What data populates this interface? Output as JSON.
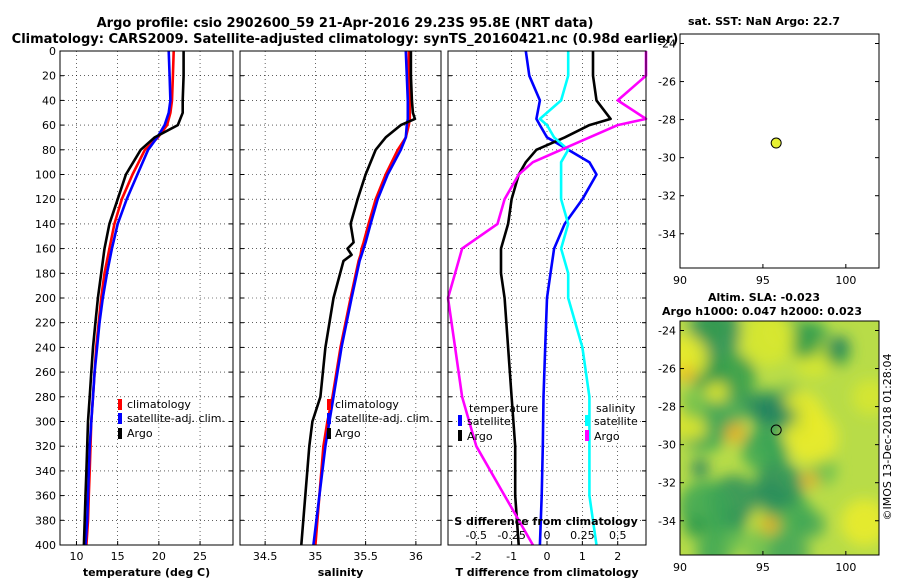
{
  "header": {
    "title1": "Argo profile: csio 2902600_59 21-Apr-2016 29.23S 95.8E (NRT data)",
    "title2": "Climatology: CARS2009. Satellite-adjusted climatology: synTS_20160421.nc (0.98d earlier)"
  },
  "side_label": "©IMOS 13-Dec-2018 01:28:04",
  "colors": {
    "red": "#ff0000",
    "blue": "#0000ff",
    "black": "#000000",
    "cyan": "#00ffff",
    "magenta": "#ff00ff",
    "marker": "#e6f032"
  },
  "chart_data": [
    {
      "id": "temperature",
      "type": "line",
      "xlabel": "temperature (deg C)",
      "xlim": [
        8,
        29
      ],
      "ylim": [
        400,
        0
      ],
      "xticks": [
        "10",
        "15",
        "20",
        "25"
      ],
      "xtick_values": [
        10,
        15,
        20,
        25
      ],
      "yticks": [
        "0",
        "20",
        "40",
        "60",
        "80",
        "100",
        "120",
        "140",
        "160",
        "180",
        "200",
        "220",
        "240",
        "260",
        "280",
        "300",
        "320",
        "340",
        "360",
        "380",
        "400"
      ],
      "depth": [
        0,
        20,
        40,
        50,
        60,
        70,
        80,
        100,
        120,
        140,
        160,
        180,
        200,
        220,
        240,
        260,
        280,
        300,
        320,
        340,
        360,
        380,
        400
      ],
      "legend": [
        "climatology",
        "satellite-adj. clim.",
        "Argo"
      ],
      "series": [
        {
          "name": "climatology",
          "color": "red",
          "values": [
            21.8,
            21.7,
            21.6,
            21.4,
            21.0,
            19.9,
            18.3,
            16.8,
            15.5,
            14.6,
            14.0,
            13.4,
            13.0,
            12.7,
            12.4,
            12.2,
            12.0,
            11.8,
            11.7,
            11.6,
            11.5,
            11.4,
            11.2
          ]
        },
        {
          "name": "satellite-adj. clim.",
          "color": "blue",
          "values": [
            21.2,
            21.3,
            21.4,
            21.2,
            20.7,
            19.8,
            18.7,
            17.4,
            16.1,
            15.0,
            14.3,
            13.7,
            13.2,
            12.8,
            12.5,
            12.2,
            12.0,
            11.8,
            11.6,
            11.5,
            11.4,
            11.3,
            11.1
          ]
        },
        {
          "name": "Argo",
          "color": "black",
          "values": [
            23.0,
            23.0,
            22.9,
            22.9,
            22.3,
            19.5,
            17.8,
            16.0,
            15.0,
            14.0,
            13.4,
            13.0,
            12.6,
            12.3,
            12.0,
            11.8,
            11.6,
            11.4,
            11.3,
            11.2,
            11.1,
            11.0,
            10.9
          ]
        }
      ]
    },
    {
      "id": "salinity",
      "type": "line",
      "xlabel": "salinity",
      "xlim": [
        34.25,
        36.25
      ],
      "ylim": [
        400,
        0
      ],
      "xticks": [
        "34.5",
        "35",
        "35.5",
        "36"
      ],
      "xtick_values": [
        34.5,
        35,
        35.5,
        36
      ],
      "depth": [
        0,
        20,
        40,
        50,
        55,
        60,
        70,
        80,
        100,
        120,
        140,
        155,
        160,
        165,
        170,
        200,
        240,
        280,
        300,
        320,
        360,
        400
      ],
      "legend": [
        "climatology",
        "satellite-adj. clim.",
        "Argo"
      ],
      "series": [
        {
          "name": "climatology",
          "color": "red",
          "values": [
            35.93,
            35.93,
            35.94,
            35.94,
            35.94,
            35.93,
            35.9,
            35.82,
            35.7,
            35.6,
            35.53,
            35.48,
            35.46,
            35.45,
            35.43,
            35.35,
            35.25,
            35.17,
            35.12,
            35.08,
            35.04,
            35.0
          ]
        },
        {
          "name": "satellite-adj. clim.",
          "color": "blue",
          "values": [
            35.9,
            35.91,
            35.92,
            35.92,
            35.92,
            35.91,
            35.9,
            35.85,
            35.72,
            35.62,
            35.55,
            35.5,
            35.48,
            35.46,
            35.44,
            35.36,
            35.26,
            35.18,
            35.14,
            35.1,
            35.04,
            34.98
          ]
        },
        {
          "name": "Argo",
          "color": "black",
          "values": [
            35.95,
            35.95,
            35.96,
            35.97,
            35.99,
            35.85,
            35.7,
            35.6,
            35.5,
            35.42,
            35.35,
            35.38,
            35.32,
            35.36,
            35.28,
            35.18,
            35.1,
            35.05,
            34.97,
            34.94,
            34.9,
            34.86
          ]
        }
      ]
    },
    {
      "id": "difference",
      "type": "line",
      "xlabel": "T difference from climatology",
      "xlabel_top": "S difference from climatology",
      "xlim": [
        -2.8,
        2.8
      ],
      "ylim": [
        400,
        0
      ],
      "xticks": [
        "-2",
        "-1",
        "0",
        "1",
        "2"
      ],
      "xtick_values": [
        -2,
        -1,
        0,
        1,
        2
      ],
      "xticks_top": [
        "-0.5",
        "-0.25",
        "0",
        "0.25",
        "0.5"
      ],
      "xtick_top_values": [
        -0.5,
        -0.25,
        0,
        0.25,
        0.5
      ],
      "depth": [
        0,
        20,
        40,
        55,
        60,
        70,
        80,
        90,
        100,
        120,
        140,
        160,
        180,
        200,
        240,
        280,
        320,
        360,
        400
      ],
      "legend_temperature_title": "temperature",
      "legend_salinity_title": "salinity",
      "legend": [
        "satellite",
        "Argo",
        "satellite",
        "Argo"
      ],
      "series": [
        {
          "name": "satellite",
          "group": "temperature",
          "color": "blue",
          "values": [
            -0.6,
            -0.5,
            -0.2,
            -0.3,
            -0.2,
            0.0,
            0.6,
            1.2,
            1.4,
            1.0,
            0.5,
            0.2,
            0.1,
            0.0,
            -0.05,
            -0.1,
            -0.12,
            -0.15,
            -0.2
          ]
        },
        {
          "name": "Argo",
          "group": "temperature",
          "color": "black",
          "values": [
            1.3,
            1.3,
            1.4,
            1.8,
            1.2,
            0.5,
            -0.3,
            -0.6,
            -0.8,
            -1.0,
            -1.1,
            -1.3,
            -1.3,
            -1.2,
            -1.1,
            -1.0,
            -0.9,
            -0.9,
            -0.8
          ]
        },
        {
          "name": "satellite",
          "group": "salinity",
          "color": "cyan",
          "values": [
            0.15,
            0.15,
            0.1,
            -0.05,
            0.0,
            0.05,
            0.15,
            0.1,
            0.1,
            0.1,
            0.15,
            0.1,
            0.15,
            0.15,
            0.25,
            0.3,
            0.3,
            0.3,
            0.35
          ]
        },
        {
          "name": "Argo",
          "group": "salinity",
          "color": "magenta",
          "values": [
            0.7,
            0.7,
            0.5,
            0.7,
            0.5,
            0.3,
            0.1,
            -0.1,
            -0.2,
            -0.3,
            -0.35,
            -0.6,
            -0.65,
            -0.7,
            -0.65,
            -0.6,
            -0.5,
            -0.3,
            -0.1
          ]
        }
      ]
    },
    {
      "id": "sst",
      "type": "scatter",
      "title": "sat. SST: NaN Argo: 22.7",
      "xlim": [
        90,
        102
      ],
      "ylim": [
        -35.8,
        -23.5
      ],
      "xticks": [
        "90",
        "95",
        "100"
      ],
      "xtick_values": [
        90,
        95,
        100
      ],
      "yticks": [
        "-24",
        "-26",
        "-28",
        "-30",
        "-32",
        "-34"
      ],
      "ytick_values": [
        -24,
        -26,
        -28,
        -30,
        -32,
        -34
      ],
      "points": [
        {
          "x": 95.8,
          "y": -29.23
        }
      ]
    },
    {
      "id": "sla",
      "type": "heatmap",
      "title1": "Altim. SLA: -0.023",
      "title2": "Argo h1000: 0.047 h2000: 0.023",
      "xlim": [
        90,
        102
      ],
      "ylim": [
        -35.8,
        -23.5
      ],
      "xticks": [
        "90",
        "95",
        "100"
      ],
      "xtick_values": [
        90,
        95,
        100
      ],
      "yticks": [
        "-24",
        "-26",
        "-28",
        "-30",
        "-32",
        "-34"
      ],
      "ytick_values": [
        -24,
        -26,
        -28,
        -30,
        -32,
        -34
      ],
      "points": [
        {
          "x": 95.8,
          "y": -29.23
        }
      ]
    }
  ]
}
